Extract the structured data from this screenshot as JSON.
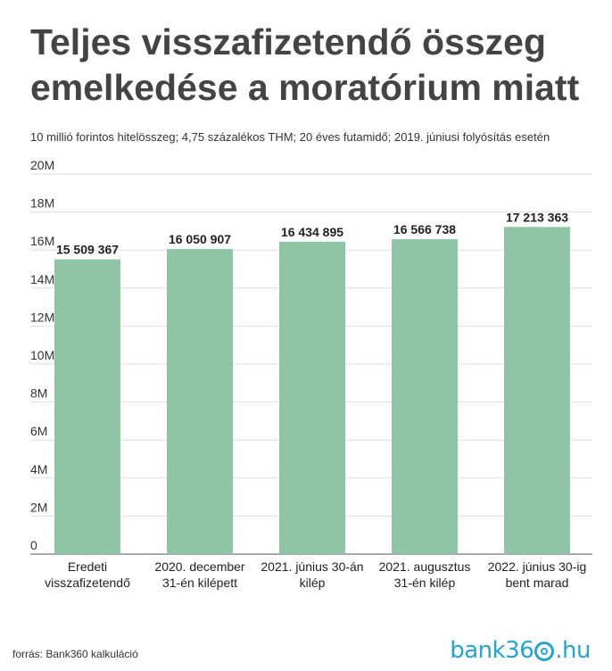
{
  "chart_data": {
    "type": "bar",
    "title": "Teljes visszafizetendő összeg emelkedése a moratórium miatt",
    "subtitle": "10 millió forintos hitelösszeg; 4,75 százalékos THM; 20 éves futamidő; 2019. júniusi folyósítás esetén",
    "categories": [
      [
        "Eredeti",
        "visszafizetendő"
      ],
      [
        "2020. december",
        "31-én kilépett"
      ],
      [
        "2021. június 30-án",
        "kilép"
      ],
      [
        "2021. augusztus",
        "31-én kilép"
      ],
      [
        "2022. június 30-ig",
        "bent marad"
      ]
    ],
    "values": [
      15509367,
      16050907,
      16434895,
      16566738,
      17213363
    ],
    "value_labels": [
      "15 509 367",
      "16 050 907",
      "16 434 895",
      "16 566 738",
      "17 213 363"
    ],
    "ylim": [
      0,
      20000000
    ],
    "yticks": [
      "0",
      "2M",
      "4M",
      "6M",
      "8M",
      "10M",
      "12M",
      "14M",
      "16M",
      "18M",
      "20M"
    ],
    "grid": true,
    "bar_color": "#8fc5a5"
  },
  "footer": {
    "source": "forrás: Bank360 kalkuláció",
    "logo_prefix": "bank36",
    "logo_suffix": ".hu"
  }
}
